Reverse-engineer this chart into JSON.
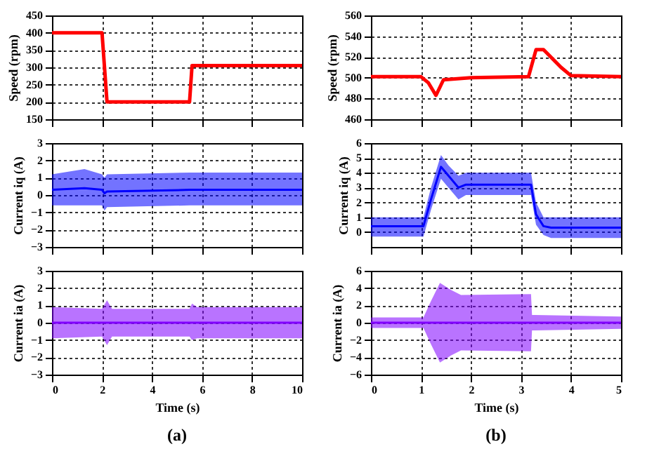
{
  "chart_data": [
    {
      "type": "line",
      "ylabel": "Speed (rpm)",
      "xlim": [
        0,
        10
      ],
      "xticks": [
        0,
        2,
        4,
        6,
        8,
        10
      ],
      "ylim": [
        150,
        450
      ],
      "yticks": [
        150,
        200,
        250,
        300,
        350,
        400,
        450
      ],
      "grid": true,
      "tick_labels": "y",
      "series": [
        {
          "color": "#ff0000",
          "x": [
            0,
            2.0,
            2.2,
            5.5,
            5.6,
            10
          ],
          "values": [
            400,
            400,
            200,
            200,
            305,
            305
          ]
        }
      ]
    },
    {
      "type": "line",
      "ylabel": "Current iq (A)",
      "xlim": [
        0,
        10
      ],
      "xticks": [
        0,
        2,
        4,
        6,
        8,
        10
      ],
      "ylim": [
        -3,
        3
      ],
      "yticks": [
        -3,
        -2,
        -1,
        0,
        1,
        2,
        3
      ],
      "grid": true,
      "tick_labels": "y",
      "series": [
        {
          "color": "#0000ff",
          "x": [
            0,
            1.3,
            2.0,
            2.1,
            2.2,
            5.5,
            10
          ],
          "values": [
            0.3,
            0.4,
            0.3,
            0.1,
            0.2,
            0.3,
            0.3
          ],
          "upper": [
            1.2,
            1.5,
            1.2,
            1.0,
            1.2,
            1.3,
            1.3
          ],
          "lower": [
            -0.6,
            -0.6,
            -0.6,
            -0.9,
            -0.7,
            -0.6,
            -0.6
          ]
        }
      ]
    },
    {
      "type": "line",
      "ylabel": "Current ia (A)",
      "xlabel": "Time (s)",
      "annotations": [
        "(a)"
      ],
      "xlim": [
        0,
        10
      ],
      "xticks": [
        0,
        2,
        4,
        6,
        8,
        10
      ],
      "ylim": [
        -3,
        3
      ],
      "yticks": [
        -3,
        -2,
        -1,
        0,
        1,
        2,
        3
      ],
      "grid": true,
      "series": [
        {
          "color": "#8000ff",
          "x": [
            0,
            2.0,
            2.2,
            2.4,
            5.5,
            5.6,
            5.8,
            10
          ],
          "values": [
            0,
            0,
            0,
            0,
            0,
            0,
            0,
            0
          ],
          "upper": [
            0.9,
            0.8,
            1.3,
            0.8,
            0.8,
            1.1,
            0.9,
            0.9
          ],
          "lower": [
            -0.9,
            -0.8,
            -1.3,
            -0.8,
            -0.8,
            -1.0,
            -0.9,
            -0.9
          ]
        }
      ]
    },
    {
      "type": "line",
      "ylabel": "Speed (rpm)",
      "xlim": [
        0,
        5
      ],
      "xticks": [
        0,
        1,
        2,
        3,
        4,
        5
      ],
      "ylim": [
        460,
        560
      ],
      "yticks": [
        460,
        480,
        500,
        520,
        540,
        560
      ],
      "grid": true,
      "tick_labels": "y",
      "series": [
        {
          "color": "#ff0000",
          "x": [
            0,
            1.0,
            1.15,
            1.3,
            1.45,
            2.0,
            3.15,
            3.3,
            3.45,
            3.8,
            4.0,
            5
          ],
          "values": [
            501,
            501,
            495,
            483,
            498,
            500,
            501,
            527,
            527,
            510,
            502,
            501
          ]
        }
      ]
    },
    {
      "type": "line",
      "ylabel": "Current iq (A)",
      "xlim": [
        0,
        5
      ],
      "xticks": [
        0,
        1,
        2,
        3,
        4,
        5
      ],
      "ylim": [
        -1,
        6
      ],
      "yticks": [
        0,
        1,
        2,
        3,
        4,
        5,
        6
      ],
      "grid": true,
      "tick_labels": "y",
      "series": [
        {
          "color": "#0000ff",
          "x": [
            0,
            1.05,
            1.2,
            1.4,
            1.55,
            1.75,
            1.9,
            3.2,
            3.3,
            3.45,
            3.6,
            5
          ],
          "values": [
            0.4,
            0.4,
            2.2,
            4.4,
            3.8,
            3.0,
            3.2,
            3.2,
            1.2,
            0.4,
            0.3,
            0.3
          ],
          "upper": [
            1,
            1,
            3,
            5.2,
            4.5,
            3.8,
            4.0,
            4.0,
            2.0,
            1.0,
            1.0,
            1.0
          ],
          "lower": [
            -0.3,
            -0.3,
            1.5,
            3.6,
            3.0,
            2.2,
            2.5,
            2.5,
            0.5,
            -0.2,
            -0.4,
            -0.4
          ]
        }
      ]
    },
    {
      "type": "line",
      "ylabel": "Current ia (A)",
      "xlabel": "Time (s)",
      "annotations": [
        "(b)"
      ],
      "xlim": [
        0,
        5
      ],
      "xticks": [
        0,
        1,
        2,
        3,
        4,
        5
      ],
      "ylim": [
        -6,
        6
      ],
      "yticks": [
        -6,
        -4,
        -2,
        0,
        2,
        4,
        6
      ],
      "grid": true,
      "series": [
        {
          "color": "#8000ff",
          "x": [
            0,
            1.05,
            1.2,
            1.38,
            1.6,
            1.8,
            3.2,
            3.22,
            5
          ],
          "values": [
            0,
            0,
            0,
            0,
            0,
            0,
            0,
            0,
            0
          ],
          "upper": [
            0.6,
            0.6,
            2.5,
            4.6,
            3.8,
            3.2,
            3.3,
            0.9,
            0.7
          ],
          "lower": [
            -0.6,
            -0.6,
            -2.5,
            -4.6,
            -3.8,
            -3.2,
            -3.3,
            -0.9,
            -0.7
          ]
        }
      ]
    }
  ]
}
